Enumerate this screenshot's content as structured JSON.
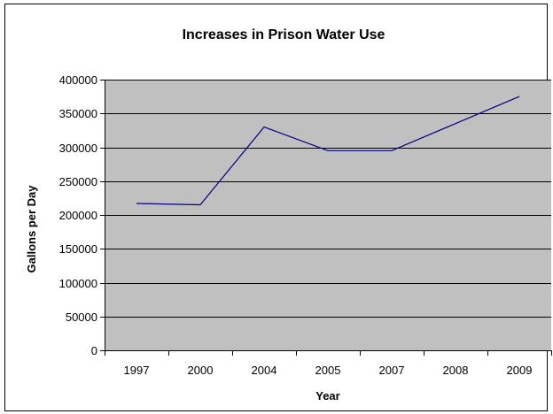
{
  "chart_data": {
    "type": "line",
    "title": "Increases in Prison Water Use",
    "xlabel": "Year",
    "ylabel": "Gallons per Day",
    "categories": [
      "1997",
      "2000",
      "2004",
      "2005",
      "2007",
      "2008",
      "2009"
    ],
    "series": [
      {
        "values": [
          217000,
          215000,
          330000,
          295000,
          295000,
          335000,
          375000
        ]
      }
    ],
    "ylim": [
      0,
      400000
    ],
    "yticks": [
      0,
      50000,
      100000,
      150000,
      200000,
      250000,
      300000,
      350000,
      400000
    ],
    "grid": true,
    "legend": "none",
    "colors": {
      "plot_background": "#c0c0c0",
      "line": "#000080",
      "gridline": "#000000",
      "frame": "#000000"
    }
  }
}
